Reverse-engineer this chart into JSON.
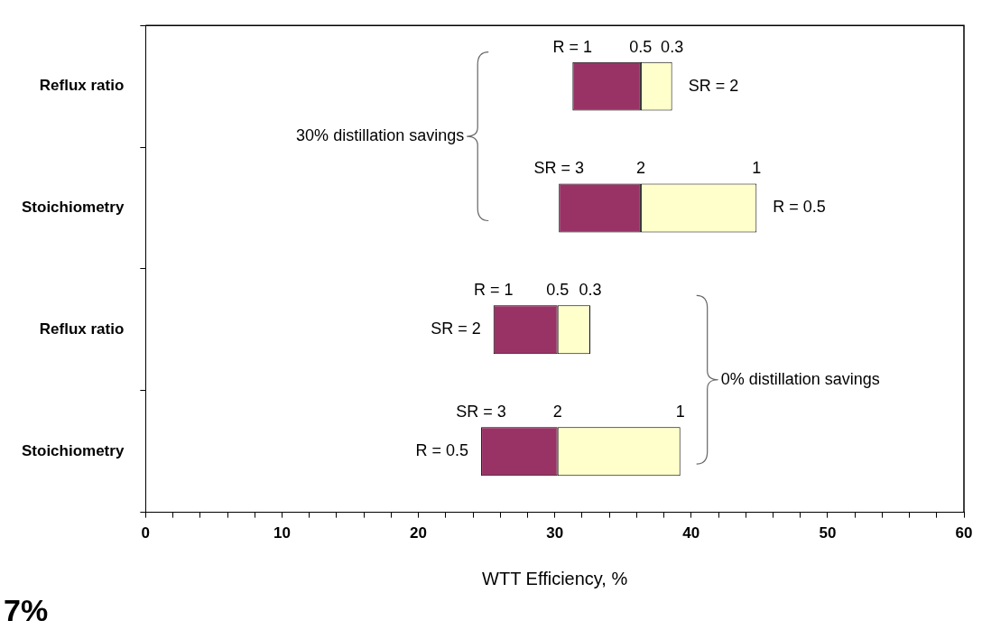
{
  "chart_data": {
    "type": "bar",
    "orientation": "horizontal",
    "categories": [
      "Reflux ratio",
      "Stoichiometry",
      "Reflux ratio",
      "Stoichiometry"
    ],
    "series": [
      {
        "color": "#993366",
        "base": [
          31.3,
          30.3,
          25.5,
          24.6
        ],
        "values": [
          5.0,
          6.0,
          4.7,
          5.6
        ]
      },
      {
        "color": "#ffffcc",
        "base": [
          36.3,
          36.3,
          30.2,
          30.2
        ],
        "values": [
          2.3,
          8.5,
          2.4,
          9.0
        ]
      }
    ],
    "xlabel": "WTT Efficiency, %",
    "xlim": [
      0,
      60
    ],
    "xticks": [
      0,
      {
        "value": 2,
        "label": null
      },
      {
        "value": 4,
        "label": null
      },
      {
        "value": 6,
        "label": null
      },
      {
        "value": 8,
        "label": null
      },
      10,
      {
        "value": 12,
        "label": null
      },
      {
        "value": 14,
        "label": null
      },
      {
        "value": 16,
        "label": null
      },
      {
        "value": 18,
        "label": null
      },
      20,
      {
        "value": 22,
        "label": null
      },
      {
        "value": 24,
        "label": null
      },
      {
        "value": 26,
        "label": null
      },
      {
        "value": 28,
        "label": null
      },
      30,
      {
        "value": 32,
        "label": null
      },
      {
        "value": 34,
        "label": null
      },
      {
        "value": 36,
        "label": null
      },
      {
        "value": 38,
        "label": null
      },
      40,
      {
        "value": 42,
        "label": null
      },
      {
        "value": 44,
        "label": null
      },
      {
        "value": 46,
        "label": null
      },
      {
        "value": 48,
        "label": null
      },
      50,
      {
        "value": 52,
        "label": null
      },
      {
        "value": 54,
        "label": null
      },
      {
        "value": 56,
        "label": null
      },
      {
        "value": 58,
        "label": null
      },
      60
    ],
    "annotations": [
      "R = 1",
      "0.5",
      "0.3",
      "SR = 2",
      "SR = 3",
      "2",
      "1",
      "R = 0.5",
      "R = 1",
      "0.5",
      "0.3",
      "SR = 2",
      "SR = 3",
      "2",
      "1",
      "R = 0.5",
      "30% distillation savings",
      "0% distillation savings",
      "7%"
    ]
  }
}
